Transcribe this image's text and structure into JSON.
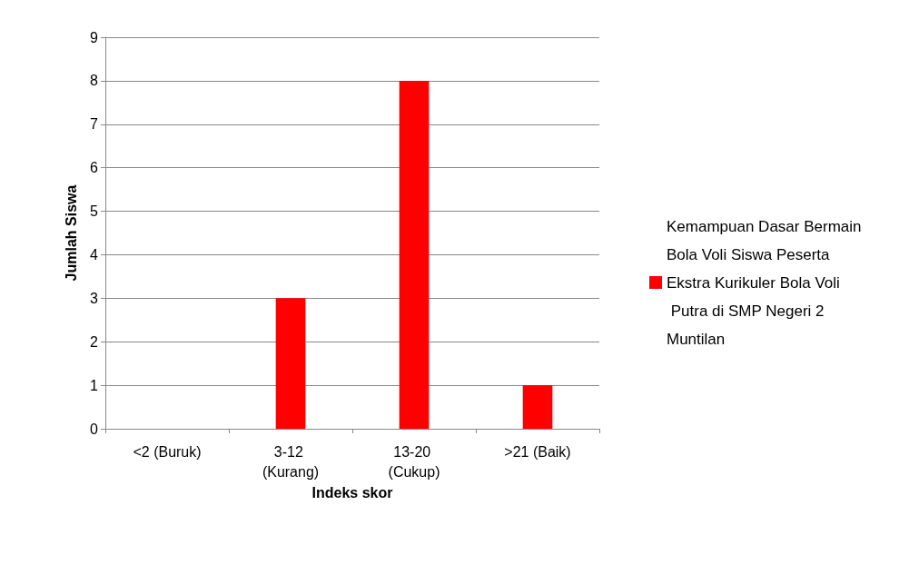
{
  "chart_data": {
    "type": "bar",
    "xlabel": "Indeks skor",
    "ylabel": "Jumlah Siswa",
    "categories": [
      "<2 (Buruk)",
      "3-12 (Kurang)",
      "13-20 (Cukup)",
      ">21 (Baik)"
    ],
    "series": [
      {
        "name": "Kemampuan Dasar Bermain Bola Voli Siswa Peserta Ekstra Kurikuler Bola Voli Putra di SMP Negeri 2 Muntilan",
        "color": "#ff0000",
        "values": [
          0,
          3,
          8,
          1
        ]
      }
    ],
    "ylim": [
      0,
      9
    ],
    "yticks": [
      0,
      1,
      2,
      3,
      4,
      5,
      6,
      7,
      8,
      9
    ],
    "grid": "y",
    "legend": "right"
  }
}
